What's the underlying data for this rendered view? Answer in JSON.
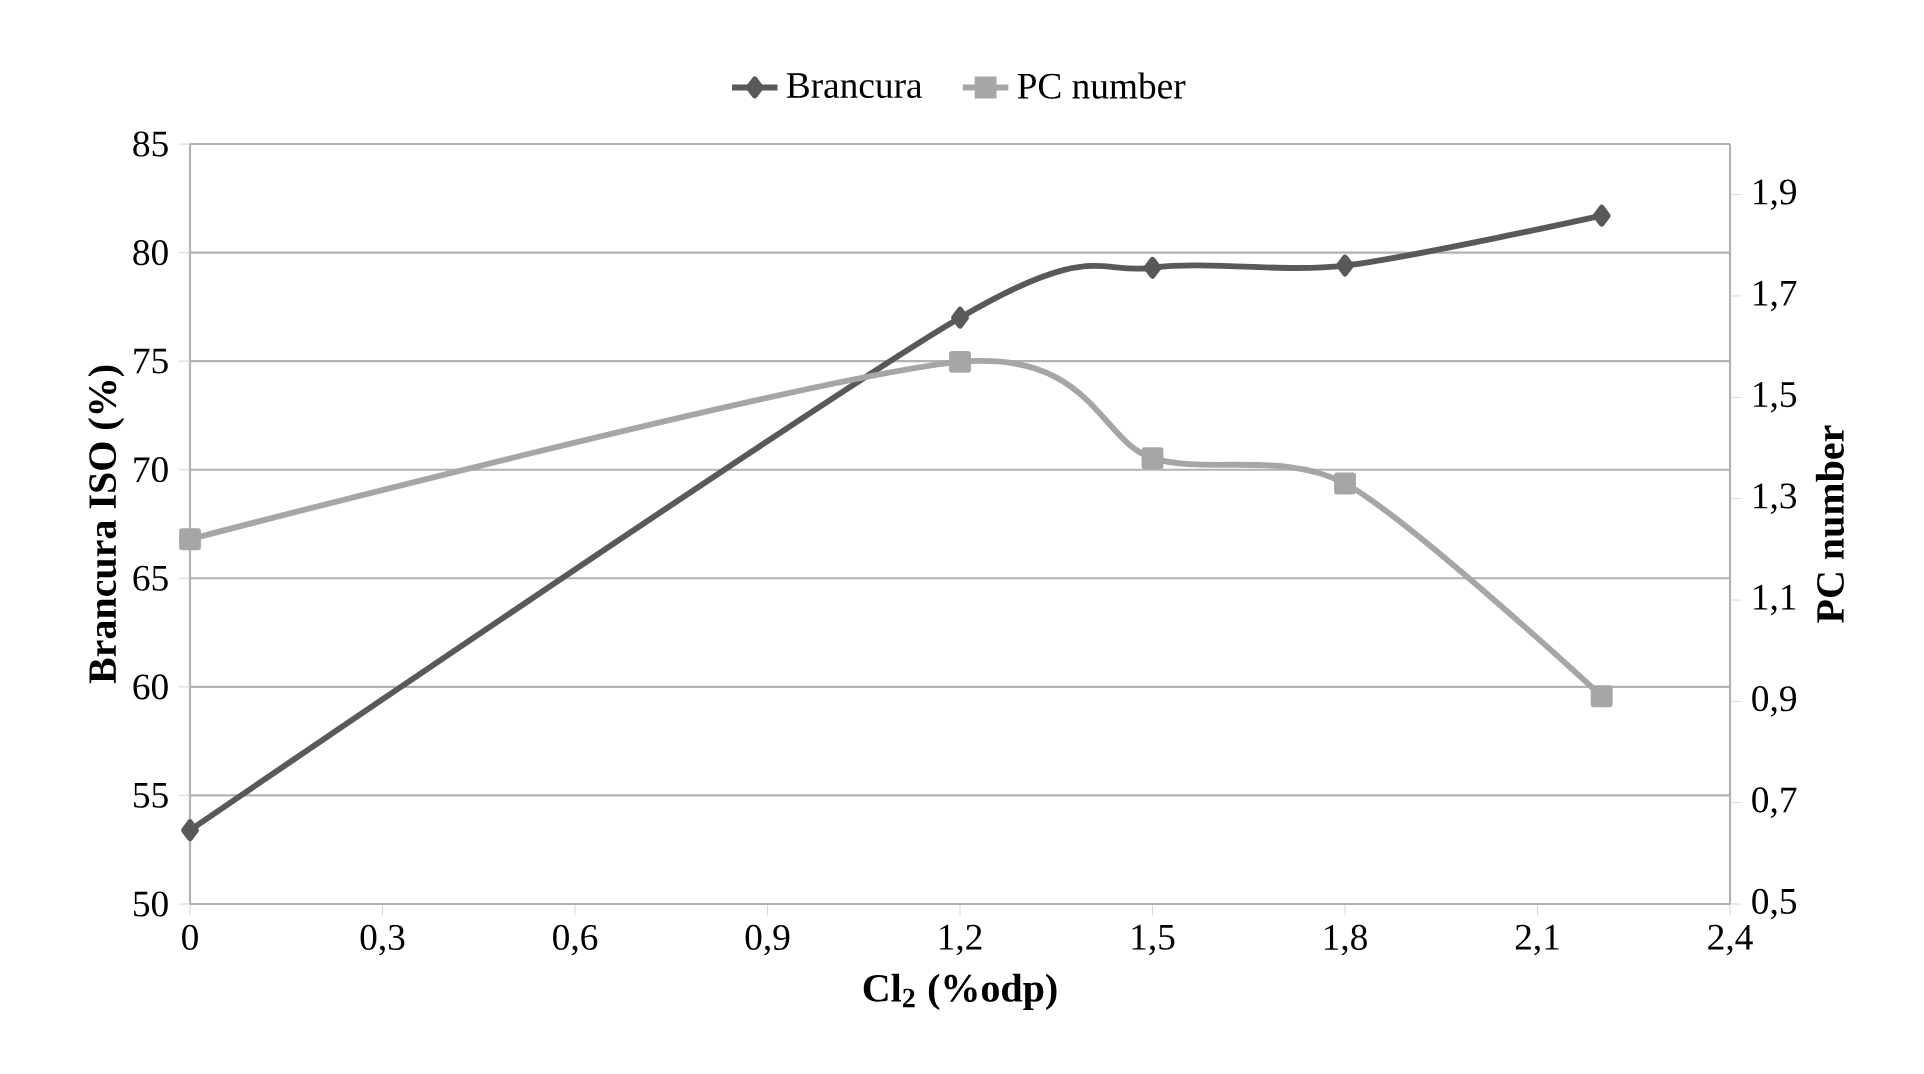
{
  "chart_data": {
    "type": "line",
    "xlabel": "Cl$_{2}$ (%odp)",
    "ylabel": "Brancura ISO (%)",
    "y2label": "PC number",
    "x": [
      0,
      1.2,
      1.5,
      1.8,
      2.2
    ],
    "series": [
      {
        "name": "Brancura",
        "color": "#595959",
        "marker": "diamond",
        "values": [
          53.4,
          77.0,
          79.3,
          79.4,
          81.7
        ]
      },
      {
        "name": "PC number",
        "color": "#a6a6a6",
        "marker": "square",
        "axis": "y2",
        "values": [
          1.22,
          1.57,
          1.38,
          1.33,
          0.91
        ]
      }
    ],
    "xlim": [
      0,
      2.4
    ],
    "xticks": [
      0,
      {
        "value": 0.3,
        "label": "0,3"
      },
      {
        "value": 0.6,
        "label": "0,6"
      },
      {
        "value": 0.9,
        "label": "0,9"
      },
      {
        "value": 1.2,
        "label": "1,2"
      },
      {
        "value": 1.5,
        "label": "1,5"
      },
      {
        "value": 1.8,
        "label": "1,8"
      },
      {
        "value": 2.1,
        "label": "2,1"
      },
      {
        "value": 2.4,
        "label": "2,4"
      }
    ],
    "ylim": [
      50,
      85
    ],
    "yticks": [
      50,
      55,
      60,
      65,
      70,
      75,
      80,
      85
    ],
    "y2lim": [
      0.5,
      2.0
    ],
    "y2ticks": [
      {
        "value": 0.5,
        "label": "0,5"
      },
      {
        "value": 0.7,
        "label": "0,7"
      },
      {
        "value": 0.9,
        "label": "0,9"
      },
      {
        "value": 1.1,
        "label": "1,1"
      },
      {
        "value": 1.3,
        "label": "1,3"
      },
      {
        "value": 1.5,
        "label": "1,5"
      },
      {
        "value": 1.7,
        "label": "1,7"
      },
      {
        "value": 1.9,
        "label": "1,9"
      }
    ],
    "grid": "y",
    "legend": "top"
  }
}
